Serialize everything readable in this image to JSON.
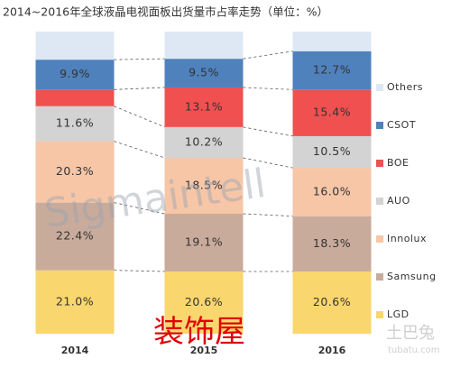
{
  "chart_data": {
    "type": "stacked-bar",
    "title": "2014~2016年全球液晶电视面板出货量市占率走势（单位：%）",
    "categories": [
      "2014",
      "2015",
      "2016"
    ],
    "ylim": [
      0,
      100
    ],
    "annotations": [
      "Sigmaintell",
      "装饰屋",
      "土巴兔",
      "tubatu.com"
    ],
    "series": [
      {
        "name": "LGD",
        "color": "#f9d66e",
        "values": [
          21.0,
          20.6,
          20.6
        ],
        "value_labels": [
          "21.0%",
          "20.6%",
          "20.6%"
        ]
      },
      {
        "name": "Samsung",
        "color": "#c9ab9c",
        "values": [
          22.4,
          19.1,
          18.3
        ],
        "value_labels": [
          "22.4%",
          "19.1%",
          "18.3%"
        ]
      },
      {
        "name": "Innolux",
        "color": "#f6c6a7",
        "values": [
          20.3,
          18.5,
          16.0
        ],
        "value_labels": [
          "20.3%",
          "18.5%",
          "16.0%"
        ]
      },
      {
        "name": "AUO",
        "color": "#d3d3d3",
        "values": [
          11.6,
          10.2,
          10.5
        ],
        "value_labels": [
          "11.6%",
          "10.2%",
          "10.5%"
        ]
      },
      {
        "name": "BOE",
        "color": "#f05050",
        "values": [
          5.5,
          13.1,
          15.4
        ],
        "value_labels": [
          null,
          "13.1%",
          "15.4%"
        ]
      },
      {
        "name": "CSOT",
        "color": "#4f81bd",
        "values": [
          9.9,
          9.5,
          12.7
        ],
        "value_labels": [
          "9.9%",
          "9.5%",
          "12.7%"
        ]
      },
      {
        "name": "Others",
        "color": "#dde8f4",
        "values": [
          9.3,
          9.0,
          6.5
        ],
        "value_labels": [
          null,
          null,
          null
        ]
      }
    ]
  }
}
